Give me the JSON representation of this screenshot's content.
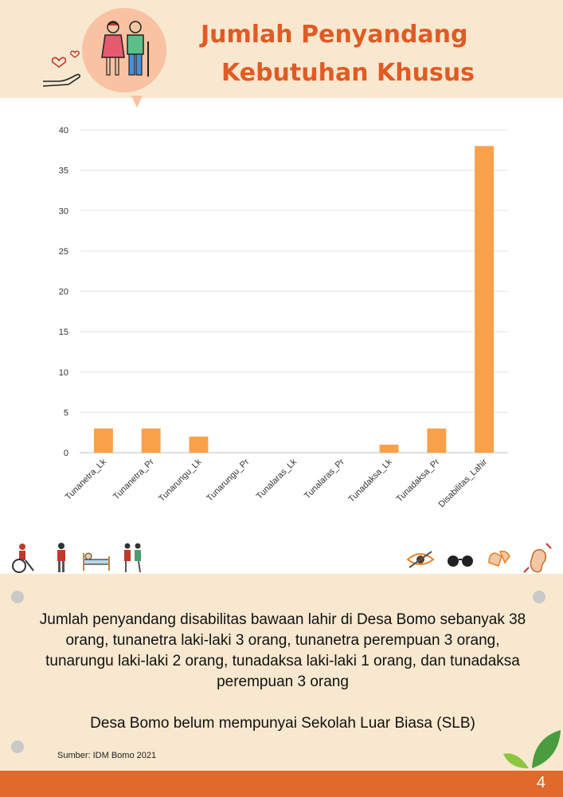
{
  "header": {
    "title_line1": "Jumlah Penyandang",
    "title_line2": "Kebutuhan Khusus"
  },
  "icons_left": [
    "wheelchair-user-icon",
    "standing-person-icon",
    "person-in-bed-icon",
    "assisted-walking-icon"
  ],
  "icons_right": [
    "eye-icon",
    "glasses-icon",
    "sign-language-icon",
    "ear-icon"
  ],
  "chart_data": {
    "type": "bar",
    "title": "",
    "xlabel": "",
    "ylabel": "",
    "categories": [
      "Tunanetra_Lk",
      "Tunanetra_Pr",
      "Tunarungu_Lk",
      "Tunarungu_Pr",
      "Tunalaras_Lk",
      "Tunalaras_Pr",
      "Tunadaksa_Lk",
      "Tunadaksa_Pr",
      "Disabilitas_Lahir"
    ],
    "values": [
      3,
      3,
      2,
      0,
      0,
      0,
      1,
      3,
      38
    ],
    "ylim": [
      0,
      40
    ],
    "yticks": [
      0,
      5,
      10,
      15,
      20,
      25,
      30,
      35,
      40
    ],
    "grid": true,
    "bar_color": "#f9a04b"
  },
  "panel": {
    "summary": "Jumlah penyandang disabilitas bawaan lahir di Desa Bomo sebanyak 38 orang, tunanetra laki-laki 3 orang, tunanetra perempuan 3 orang, tunarungu laki-laki 2 orang, tunadaksa laki-laki 1 orang, dan tunadaksa perempuan 3 orang",
    "note": "Desa Bomo belum mempunyai Sekolah Luar Biasa (SLB)",
    "source": "Sumber: IDM Bomo 2021"
  },
  "footer": {
    "page_number": "4"
  },
  "colors": {
    "accent": "#e05b24",
    "cream": "#f7e8cf",
    "bubble": "#f9c2a2",
    "footer": "#e0692b"
  }
}
